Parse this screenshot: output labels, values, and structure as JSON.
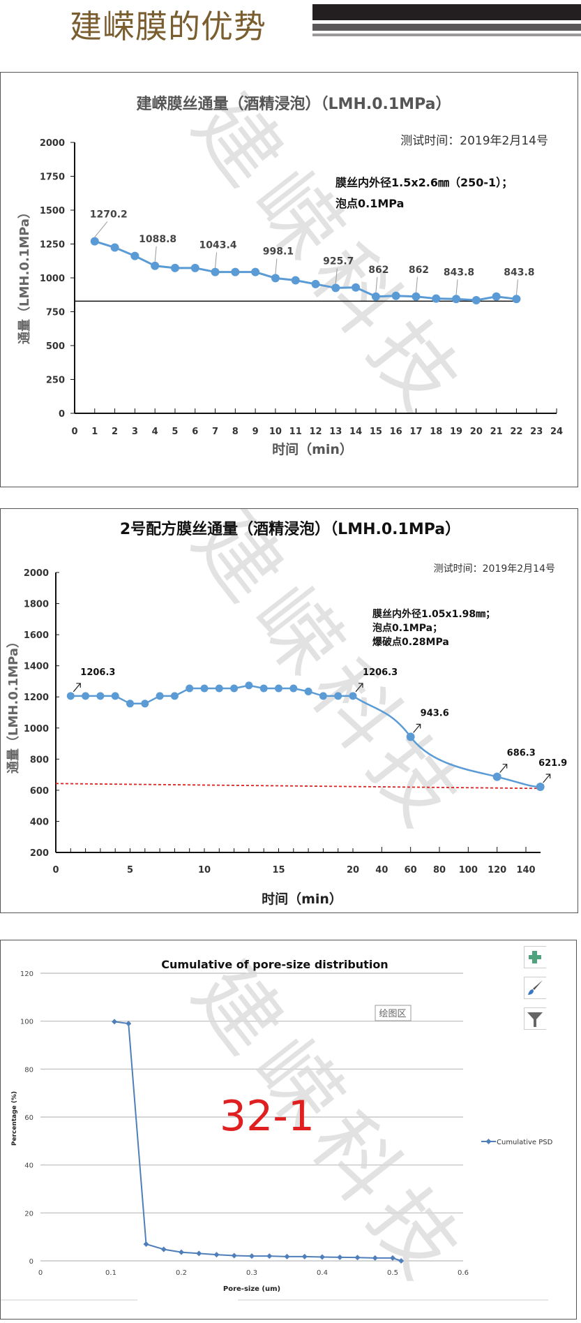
{
  "header": {
    "title": "建嵘膜的优势"
  },
  "watermark": "建嵘科技",
  "chart_data": [
    {
      "type": "line",
      "title": "建嵘膜丝通量（酒精浸泡）（LMH.0.1MPa）",
      "subtitle": "测试时间：2019年2月14号",
      "annotation_lines": [
        "膜丝内外径1.5x2.6㎜（250-1）；",
        "泡点0.1MPa"
      ],
      "xlabel": "时间（min）",
      "ylabel": "通量（LMH.0.1MPa）",
      "xlim": [
        0,
        24
      ],
      "ylim": [
        0,
        2000
      ],
      "x_ticks": [
        0,
        1,
        2,
        3,
        4,
        5,
        6,
        7,
        8,
        9,
        10,
        11,
        12,
        13,
        14,
        15,
        16,
        17,
        18,
        19,
        20,
        21,
        22,
        23,
        24
      ],
      "y_ticks": [
        0,
        250,
        500,
        750,
        1000,
        1250,
        1500,
        1750,
        2000
      ],
      "x": [
        1,
        2,
        3,
        4,
        5,
        6,
        7,
        8,
        9,
        10,
        11,
        12,
        13,
        14,
        15,
        16,
        17,
        18,
        19,
        20,
        21,
        22
      ],
      "values": [
        1270.2,
        1224,
        1162,
        1088.8,
        1073,
        1073,
        1043.4,
        1043,
        1043,
        998.1,
        982,
        954,
        925.7,
        929,
        862,
        867,
        862,
        847,
        843.8,
        835,
        862,
        843.8
      ],
      "data_labels": [
        {
          "x": 1,
          "text": "1270.2"
        },
        {
          "x": 4,
          "text": "1088.8"
        },
        {
          "x": 7,
          "text": "1043.4"
        },
        {
          "x": 10,
          "text": "998.1"
        },
        {
          "x": 13,
          "text": "925.7"
        },
        {
          "x": 15,
          "text": "862"
        },
        {
          "x": 17,
          "text": "862"
        },
        {
          "x": 19,
          "text": "843.8"
        },
        {
          "x": 22,
          "text": "843.8"
        }
      ],
      "reference_line": 828,
      "series_color": "#5b9bd5",
      "grid": false
    },
    {
      "type": "line",
      "title": "2号配方膜丝通量（酒精浸泡）（LMH.0.1MPa）",
      "subtitle": "测试时间：2019年2月14号",
      "annotation_lines": [
        "膜丝内外径1.05x1.98㎜；",
        "泡点0.1MPa；",
        "爆破点0.28MPa"
      ],
      "xlabel": "时间（min）",
      "ylabel": "通量（LMH.0.1MPa）",
      "ylim": [
        200,
        2000
      ],
      "x_ticks": [
        0,
        5,
        10,
        15,
        20,
        40,
        60,
        80,
        100,
        120,
        140
      ],
      "y_ticks": [
        200,
        400,
        600,
        800,
        1000,
        1200,
        1400,
        1600,
        1800,
        2000
      ],
      "x": [
        1,
        2,
        3,
        4,
        5,
        6,
        7,
        8,
        9,
        10,
        11,
        12,
        13,
        14,
        15,
        16,
        17,
        18,
        19,
        20,
        60,
        120,
        150
      ],
      "values": [
        1206.3,
        1206,
        1206,
        1206,
        1157,
        1157,
        1206,
        1206,
        1255,
        1255,
        1255,
        1255,
        1274,
        1255,
        1255,
        1255,
        1235,
        1206,
        1206,
        1206.3,
        943.6,
        686.3,
        621.9
      ],
      "data_labels": [
        {
          "x": 1,
          "text": "1206.3"
        },
        {
          "x": 20,
          "text": "1206.3"
        },
        {
          "x": 60,
          "text": "943.6"
        },
        {
          "x": 120,
          "text": "686.3"
        },
        {
          "x": 150,
          "text": "621.9"
        }
      ],
      "reference_line": 625,
      "reference_color": "#e02020",
      "series_color": "#5b9bd5",
      "grid": false
    },
    {
      "type": "line",
      "title": "Cumulative of pore-size distribution",
      "xlabel": "Pore-size (um)",
      "ylabel": "Percentage (%)",
      "xlim": [
        0,
        0.6
      ],
      "ylim": [
        0,
        120
      ],
      "x_ticks": [
        "0",
        "0.1",
        "0.2",
        "0.3",
        "0.4",
        "0.5",
        "0.6"
      ],
      "y_ticks": [
        0,
        20,
        40,
        60,
        80,
        100,
        120
      ],
      "grid": true,
      "legend": "right",
      "series": [
        {
          "name": "Cumulative PSD",
          "x": [
            0.105,
            0.125,
            0.15,
            0.175,
            0.2,
            0.225,
            0.25,
            0.275,
            0.3,
            0.325,
            0.35,
            0.375,
            0.4,
            0.425,
            0.45,
            0.475,
            0.5,
            0.512
          ],
          "values": [
            99.8,
            99,
            7,
            4.8,
            3.6,
            3.1,
            2.6,
            2.2,
            2,
            2,
            1.8,
            1.8,
            1.6,
            1.5,
            1.4,
            1.2,
            1.2,
            0
          ]
        }
      ],
      "series_color": "#4f7fba",
      "overlay_label": "32-1",
      "overlay_color": "#e02020",
      "plot_area_tag": "绘图区",
      "tool_icons": [
        "plus-icon",
        "brush-icon",
        "filter-icon"
      ]
    }
  ]
}
